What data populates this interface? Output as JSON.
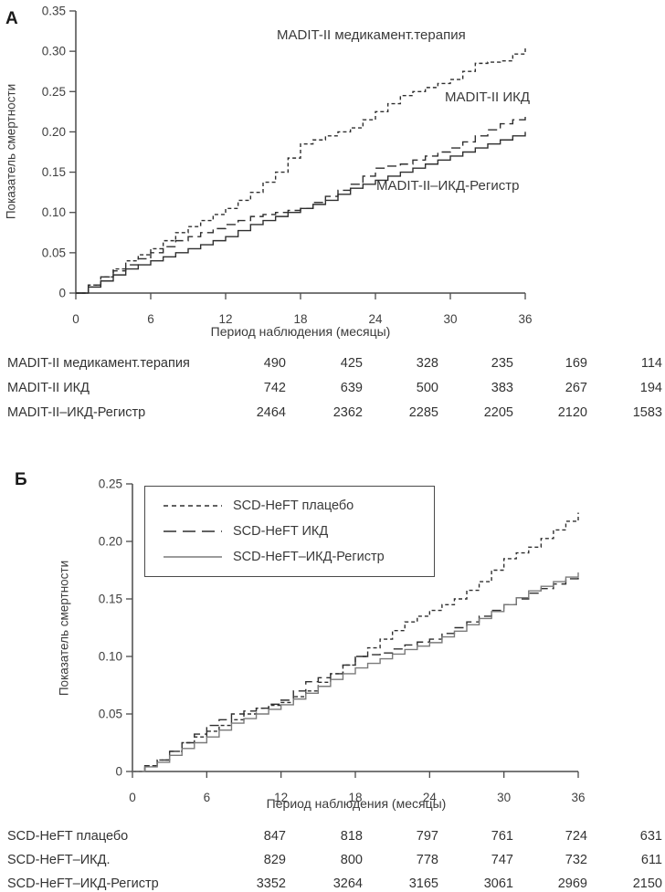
{
  "figure": {
    "background": "#ffffff",
    "text_color": "#333333",
    "axis_color": "#4a4a4a",
    "panel_a_letter": "А",
    "panel_b_letter": "Б"
  },
  "chart_data": [
    {
      "panel": "А",
      "type": "line",
      "step": true,
      "title": "",
      "xlabel": "Период наблюдения (месяцы)",
      "ylabel": "Показатель смертности",
      "xlim": [
        0,
        36
      ],
      "ylim": [
        0,
        0.35
      ],
      "xticks": [
        0,
        6,
        12,
        18,
        24,
        30,
        36
      ],
      "yticks": [
        0,
        0.05,
        0.1,
        0.15,
        0.2,
        0.25,
        0.3,
        0.35
      ],
      "ytick_labels": [
        "0",
        "0.05",
        "0.10",
        "0.15",
        "0.20",
        "0.25",
        "0.30",
        "0.35"
      ],
      "legend": false,
      "x": [
        0,
        2,
        4,
        6,
        8,
        10,
        12,
        14,
        16,
        18,
        20,
        22,
        24,
        26,
        28,
        30,
        32,
        34,
        36
      ],
      "series": [
        {
          "name": "MADIT-II медикамент.терапия",
          "line_style": "short-dash",
          "color": "#2f2f2f",
          "values": [
            0,
            0.02,
            0.04,
            0.055,
            0.075,
            0.09,
            0.105,
            0.125,
            0.15,
            0.185,
            0.195,
            0.205,
            0.225,
            0.245,
            0.255,
            0.265,
            0.285,
            0.288,
            0.305
          ]
        },
        {
          "name": "MADIT-II ИКД",
          "line_style": "long-dash",
          "color": "#2f2f2f",
          "values": [
            0,
            0.02,
            0.035,
            0.05,
            0.065,
            0.075,
            0.085,
            0.095,
            0.1,
            0.105,
            0.12,
            0.135,
            0.155,
            0.16,
            0.17,
            0.18,
            0.195,
            0.21,
            0.22
          ]
        },
        {
          "name": "MADIT-II–ИКД-Регистр",
          "line_style": "solid",
          "color": "#2f2f2f",
          "values": [
            0,
            0.015,
            0.03,
            0.04,
            0.05,
            0.06,
            0.07,
            0.085,
            0.095,
            0.105,
            0.115,
            0.13,
            0.14,
            0.15,
            0.16,
            0.17,
            0.18,
            0.19,
            0.2
          ]
        }
      ],
      "at_risk_table": {
        "rows": [
          {
            "label": "MADIT-II медикамент.терапия",
            "counts": [
              "490",
              "425",
              "328",
              "235",
              "169",
              "114"
            ]
          },
          {
            "label": "MADIT-II ИКД",
            "counts": [
              "742",
              "639",
              "500",
              "383",
              "267",
              "194"
            ]
          },
          {
            "label": "MADIT-II–ИКД-Регистр",
            "counts": [
              "2464",
              "2362",
              "2285",
              "2205",
              "2120",
              "1583"
            ]
          }
        ]
      }
    },
    {
      "panel": "Б",
      "type": "line",
      "step": true,
      "title": "",
      "xlabel": "Период наблюдения (месяцы)",
      "ylabel": "Показатель смертности",
      "xlim": [
        0,
        36
      ],
      "ylim": [
        0,
        0.25
      ],
      "xticks": [
        0,
        6,
        12,
        18,
        24,
        30,
        36
      ],
      "yticks": [
        0,
        0.05,
        0.1,
        0.15,
        0.2,
        0.25
      ],
      "ytick_labels": [
        "0",
        "0.05",
        "0.10",
        "0.15",
        "0.20",
        "0.25"
      ],
      "legend": true,
      "legend_position": "top-left",
      "x": [
        0,
        2,
        4,
        6,
        8,
        10,
        12,
        14,
        16,
        18,
        20,
        22,
        24,
        26,
        28,
        30,
        32,
        34,
        36
      ],
      "series": [
        {
          "name": "SCD-HeFT плацебо",
          "line_style": "short-dash",
          "color": "#2f2f2f",
          "values": [
            0,
            0.01,
            0.025,
            0.035,
            0.045,
            0.055,
            0.06,
            0.07,
            0.085,
            0.1,
            0.115,
            0.13,
            0.14,
            0.15,
            0.165,
            0.185,
            0.195,
            0.21,
            0.225
          ]
        },
        {
          "name": "SCD-HeFT ИКД",
          "line_style": "long-dash",
          "color": "#2f2f2f",
          "values": [
            0,
            0.01,
            0.025,
            0.04,
            0.05,
            0.055,
            0.062,
            0.078,
            0.085,
            0.1,
            0.103,
            0.11,
            0.115,
            0.125,
            0.135,
            0.145,
            0.155,
            0.163,
            0.172
          ]
        },
        {
          "name": "SCD-HeFT–ИКД-Регистр",
          "line_style": "solid",
          "color": "#7a7a7a",
          "values": [
            0,
            0.008,
            0.02,
            0.03,
            0.042,
            0.05,
            0.058,
            0.068,
            0.08,
            0.09,
            0.098,
            0.106,
            0.112,
            0.122,
            0.133,
            0.145,
            0.157,
            0.165,
            0.173
          ]
        }
      ],
      "at_risk_table": {
        "rows": [
          {
            "label": "SCD-HeFT плацебо",
            "counts": [
              "847",
              "818",
              "797",
              "761",
              "724",
              "631"
            ]
          },
          {
            "label": "SCD-HeFT–ИКД.",
            "counts": [
              "829",
              "800",
              "778",
              "747",
              "732",
              "611"
            ]
          },
          {
            "label": "SCD-HeFT–ИКД-Регистр",
            "counts": [
              "3352",
              "3264",
              "3165",
              "3061",
              "2969",
              "2150"
            ]
          }
        ]
      }
    }
  ]
}
